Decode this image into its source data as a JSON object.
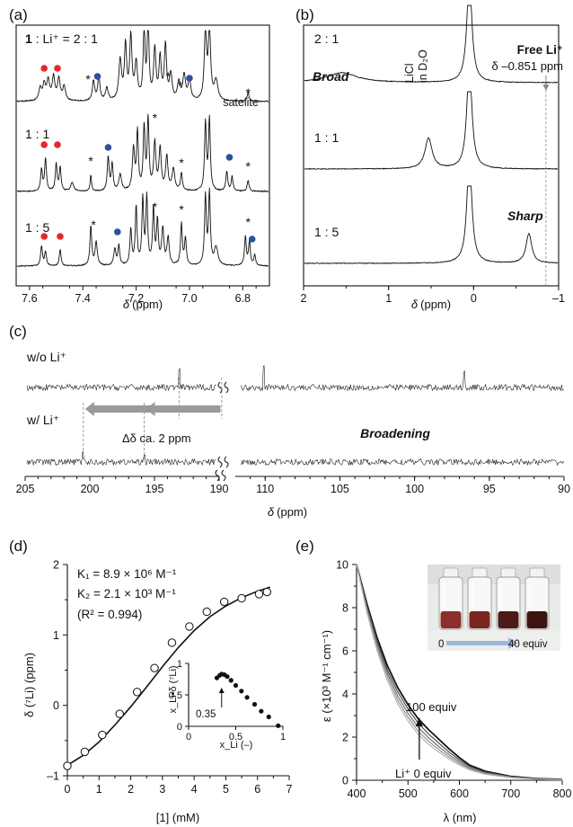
{
  "colors": {
    "red": "#e8252b",
    "blue": "#2c4f9e",
    "line": "#111111",
    "gray_arrow": "#9a9a9a",
    "uv_arrow": "#9db8dd"
  },
  "panel_a": {
    "label": "(a)",
    "x_ticks": [
      "7.6",
      "7.4",
      "7.2",
      "7.0",
      "6.8"
    ],
    "xlabel_sym": "δ",
    "xlabel_unit": "(ppm)",
    "ratios": [
      "1 : Li⁺ = 2 : 1",
      "1 : 1",
      "1 : 5"
    ],
    "ratio_bold": "1",
    "ratio_rest": " : Li⁺ = 2 : 1",
    "satellite_label": "satelite",
    "star": "*"
  },
  "panel_b": {
    "label": "(b)",
    "x_ticks": [
      "2",
      "1",
      "0",
      "–1"
    ],
    "xlabel_sym": "δ",
    "xlabel_unit": "(ppm)",
    "ratios": [
      "2 : 1",
      "1 : 1",
      "1 : 5"
    ],
    "licl_label_1": "LiCl",
    "licl_label_2": "in D₂O",
    "free_li_title": "Free Li⁺",
    "free_li_value": "δ –0.851 ppm",
    "broad_label": "Broad",
    "sharp_label": "Sharp"
  },
  "panel_c": {
    "label": "(c)",
    "wo_label": "w/o Li⁺",
    "w_label": "w/ Li⁺",
    "delta_label": "Δδ ca. 2 ppm",
    "broadening_label": "Broadening",
    "x_ticks_left": [
      "205",
      "200",
      "195",
      "190"
    ],
    "x_ticks_right": [
      "110",
      "105",
      "100",
      "95",
      "90"
    ],
    "xlabel_sym": "δ",
    "xlabel_unit": "(ppm)"
  },
  "chart_data": [
    {
      "panel": "d",
      "type": "scatter",
      "label": "(d)",
      "xlabel": "[1] (mM)",
      "ylabel": "δ (⁷Li) (ppm)",
      "xlim": [
        0,
        7
      ],
      "ylim": [
        -1,
        2
      ],
      "x_ticks": [
        "0",
        "1",
        "2",
        "3",
        "4",
        "5",
        "6",
        "7"
      ],
      "y_ticks": [
        "–1",
        "0",
        "1",
        "2"
      ],
      "annotations": [
        "K₁ = 8.9 × 10⁶ M⁻¹",
        "K₂ = 2.1 × 10³ M⁻¹",
        "(R² = 0.994)"
      ],
      "series": [
        {
          "values": [
            [
              0.0,
              -0.86
            ],
            [
              0.55,
              -0.66
            ],
            [
              1.1,
              -0.42
            ],
            [
              1.65,
              -0.12
            ],
            [
              2.2,
              0.19
            ],
            [
              2.75,
              0.53
            ],
            [
              3.3,
              0.89
            ],
            [
              3.85,
              1.12
            ],
            [
              4.4,
              1.33
            ],
            [
              4.95,
              1.47
            ],
            [
              5.5,
              1.52
            ],
            [
              6.05,
              1.58
            ],
            [
              6.3,
              1.61
            ]
          ]
        },
        {
          "values": [
            [
              0.0,
              -0.85
            ],
            [
              0.5,
              -0.71
            ],
            [
              1.0,
              -0.52
            ],
            [
              1.5,
              -0.28
            ],
            [
              2.0,
              -0.02
            ],
            [
              2.5,
              0.26
            ],
            [
              3.0,
              0.55
            ],
            [
              3.5,
              0.82
            ],
            [
              4.0,
              1.06
            ],
            [
              4.5,
              1.26
            ],
            [
              5.0,
              1.41
            ],
            [
              5.5,
              1.53
            ],
            [
              6.0,
              1.62
            ],
            [
              6.4,
              1.68
            ]
          ]
        }
      ],
      "inset": {
        "type": "scatter",
        "xlabel": "x_Li (–)",
        "ylabel": "x_Li•δ (⁷Li)",
        "xlim": [
          0,
          1
        ],
        "ylim": [
          0,
          1
        ],
        "x_ticks": [
          "0",
          "0.5",
          "1"
        ],
        "y_ticks": [
          "0",
          "0.5",
          "1"
        ],
        "annotation": "0.35",
        "x": [
          0.3,
          0.33,
          0.35,
          0.38,
          0.41,
          0.45,
          0.5,
          0.56,
          0.62,
          0.7,
          0.77,
          0.85,
          0.95
        ],
        "y": [
          0.77,
          0.81,
          0.83,
          0.82,
          0.79,
          0.73,
          0.65,
          0.56,
          0.46,
          0.35,
          0.24,
          0.15,
          0.01
        ]
      }
    },
    {
      "panel": "e",
      "type": "line",
      "label": "(e)",
      "xlabel": "λ (nm)",
      "ylabel": "ε (×10³ M⁻¹ cm⁻¹)",
      "xlim": [
        400,
        800
      ],
      "ylim": [
        0,
        10
      ],
      "x_ticks": [
        "400",
        "500",
        "600",
        "700",
        "800"
      ],
      "y_ticks": [
        "0",
        "2",
        "4",
        "6",
        "8",
        "10"
      ],
      "annotations": [
        "100 equiv",
        "Li⁺ 0 equiv"
      ],
      "photo_labels": [
        "0",
        "40 equiv"
      ],
      "x": [
        400,
        420,
        440,
        460,
        480,
        500,
        520,
        540,
        560,
        580,
        600,
        620,
        650,
        700,
        750,
        800
      ],
      "series": [
        {
          "values": [
            10.0,
            8.2,
            6.6,
            5.3,
            4.3,
            3.5,
            2.85,
            2.35,
            1.9,
            1.45,
            1.05,
            0.7,
            0.42,
            0.18,
            0.08,
            0.04
          ]
        },
        {
          "values": [
            10.0,
            8.1,
            6.45,
            5.1,
            4.1,
            3.3,
            2.65,
            2.15,
            1.72,
            1.3,
            0.95,
            0.64,
            0.38,
            0.16,
            0.07,
            0.03
          ]
        },
        {
          "values": [
            10.0,
            8.0,
            6.3,
            4.95,
            3.9,
            3.1,
            2.45,
            1.97,
            1.56,
            1.18,
            0.86,
            0.58,
            0.34,
            0.15,
            0.06,
            0.03
          ]
        },
        {
          "values": [
            10.0,
            7.9,
            6.15,
            4.8,
            3.72,
            2.92,
            2.27,
            1.81,
            1.42,
            1.07,
            0.78,
            0.53,
            0.31,
            0.13,
            0.06,
            0.03
          ]
        },
        {
          "values": [
            10.0,
            7.8,
            6.0,
            4.62,
            3.55,
            2.75,
            2.12,
            1.67,
            1.3,
            0.98,
            0.71,
            0.48,
            0.28,
            0.12,
            0.05,
            0.02
          ]
        }
      ]
    }
  ]
}
